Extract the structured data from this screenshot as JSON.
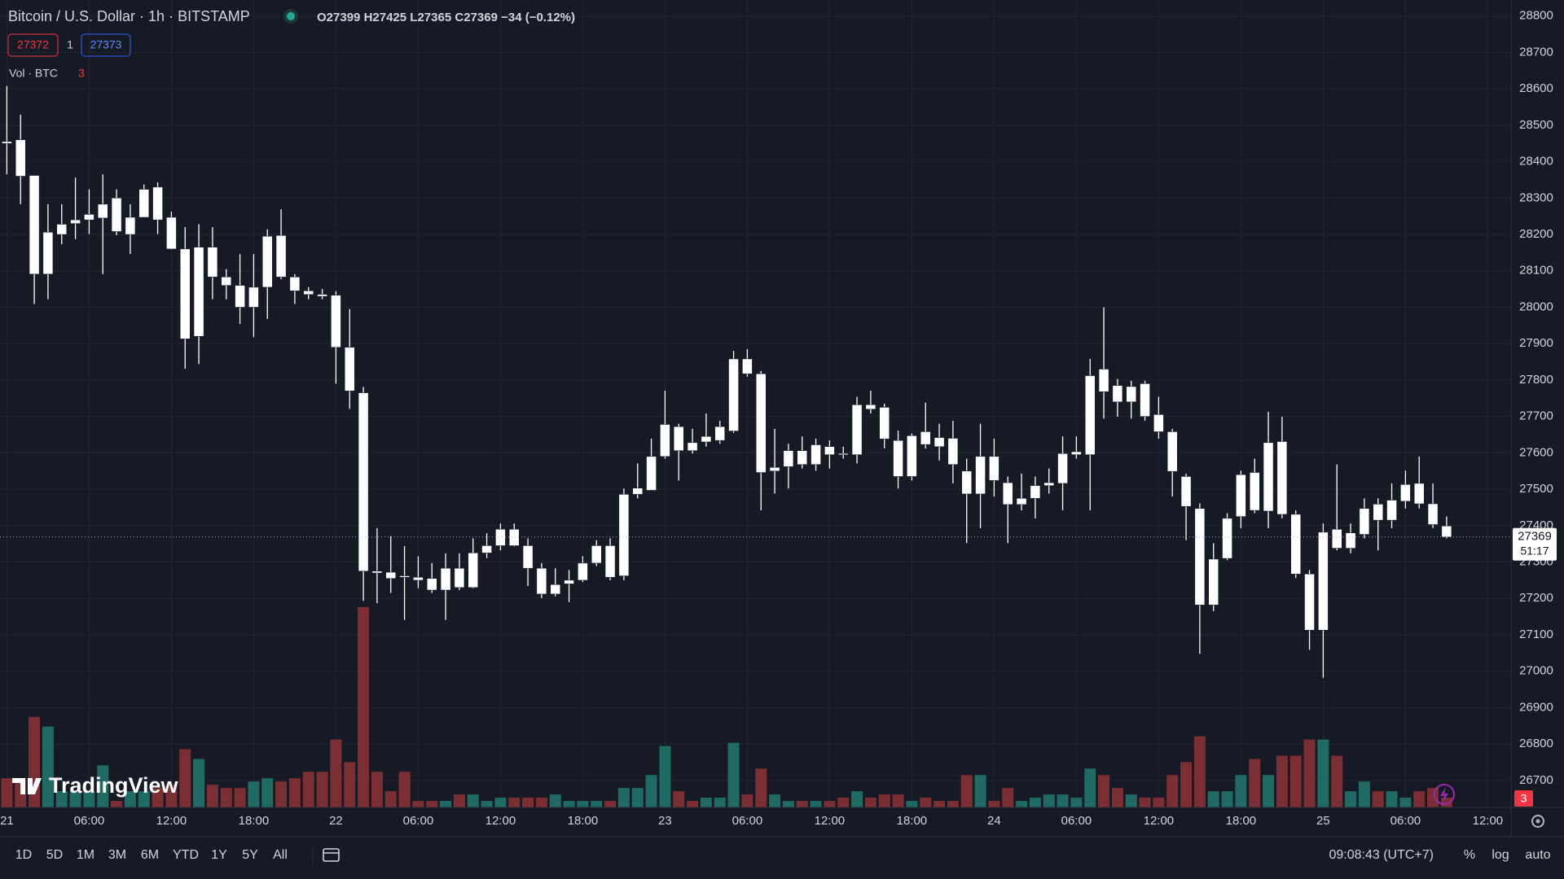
{
  "header": {
    "title": "Bitcoin / U.S. Dollar · 1h · BITSTAMP",
    "ohlc_labels": [
      "O",
      "H",
      "L",
      "C"
    ],
    "change": "−34 (−0.12%)",
    "bid": 27372,
    "spread": 1,
    "ask": 27373,
    "volume_label": "Vol · BTC",
    "countdown": "51:17",
    "logo": "TradingView"
  },
  "chart_data": {
    "type": "candlestick",
    "open": [
      28455,
      28460,
      28362,
      28091,
      28200,
      28230,
      28240,
      28245,
      28300,
      28200,
      28247,
      28330,
      28247,
      28160,
      27920,
      28165,
      28083,
      28060,
      28000,
      28055,
      28197,
      28083,
      28045,
      28035,
      28033,
      27890,
      27765,
      27275,
      27272,
      27262,
      27258,
      27255,
      27223,
      27283,
      27230,
      27325,
      27345,
      27390,
      27345,
      27283,
      27212,
      27240,
      27250,
      27297,
      27345,
      27262,
      27486,
      27497,
      27590,
      27672,
      27628,
      27630,
      27634,
      27660,
      27858,
      27817,
      27550,
      27562,
      27606,
      27568,
      27617,
      27598,
      27595,
      27732,
      27725,
      27634,
      27535,
      27658,
      27642,
      27640,
      27550,
      27487,
      27590,
      27518,
      27458,
      27475,
      27510,
      27516,
      27595,
      27595,
      27830,
      27785,
      27740,
      27790,
      27705,
      27658,
      27535,
      27447,
      27182,
      27310,
      27425,
      27546,
      27440,
      27631,
      27431,
      27267,
      27113,
      27390,
      27338,
      27376,
      27459,
      27415,
      27467,
      27516,
      27460,
      27399
    ],
    "high": [
      28608,
      28529,
      28362,
      28283,
      28283,
      28356,
      28324,
      28365,
      28324,
      28283,
      28337,
      28343,
      28263,
      28220,
      28228,
      28220,
      28105,
      28146,
      28146,
      28214,
      28269,
      28091,
      28055,
      28050,
      28044,
      27995,
      27781,
      27393,
      27371,
      27344,
      27316,
      27297,
      27324,
      27324,
      27365,
      27379,
      27406,
      27406,
      27365,
      27297,
      27283,
      27278,
      27316,
      27360,
      27365,
      27502,
      27571,
      27639,
      27771,
      27680,
      27666,
      27708,
      27688,
      27880,
      27885,
      27825,
      27666,
      27625,
      27645,
      27639,
      27634,
      27617,
      27754,
      27771,
      27735,
      27661,
      27653,
      27738,
      27680,
      27688,
      27584,
      27680,
      27639,
      27535,
      27543,
      27535,
      27557,
      27645,
      27645,
      27858,
      28000,
      27803,
      27798,
      27798,
      27754,
      27666,
      27543,
      27461,
      27352,
      27434,
      27551,
      27584,
      27713,
      27699,
      27442,
      27278,
      27406,
      27568,
      27406,
      27475,
      27475,
      27516,
      27551,
      27590,
      27516,
      27425
    ],
    "low": [
      28365,
      28283,
      28009,
      28022,
      28173,
      28187,
      28201,
      28091,
      28198,
      28146,
      28247,
      28201,
      28159,
      27831,
      27844,
      28022,
      28022,
      27954,
      27918,
      27968,
      28077,
      28009,
      28022,
      28022,
      27790,
      27721,
      27193,
      27187,
      27215,
      27141,
      27228,
      27215,
      27141,
      27223,
      27228,
      27311,
      27332,
      27343,
      27234,
      27201,
      27206,
      27190,
      27245,
      27289,
      27250,
      27250,
      27475,
      27497,
      27584,
      27524,
      27598,
      27617,
      27625,
      27655,
      27809,
      27442,
      27488,
      27502,
      27557,
      27551,
      27557,
      27584,
      27571,
      27708,
      27612,
      27502,
      27524,
      27612,
      27579,
      27516,
      27352,
      27393,
      27480,
      27352,
      27442,
      27420,
      27488,
      27442,
      27584,
      27442,
      27694,
      27699,
      27694,
      27688,
      27639,
      27480,
      27360,
      27048,
      27165,
      27305,
      27393,
      27434,
      27393,
      27420,
      27256,
      27059,
      26982,
      27332,
      27324,
      27365,
      27332,
      27393,
      27447,
      27447,
      27393,
      27365
    ],
    "close": [
      28450,
      28360,
      28091,
      28206,
      28228,
      28240,
      28255,
      28283,
      28208,
      28247,
      28324,
      28240,
      28160,
      27913,
      28165,
      28083,
      28060,
      28000,
      28055,
      28195,
      28083,
      28045,
      28035,
      28030,
      27890,
      27770,
      27275,
      27270,
      27255,
      27258,
      27250,
      27223,
      27283,
      27230,
      27325,
      27345,
      27390,
      27345,
      27283,
      27212,
      27238,
      27250,
      27297,
      27345,
      27258,
      27486,
      27503,
      27590,
      27678,
      27606,
      27606,
      27645,
      27672,
      27858,
      27817,
      27546,
      27560,
      27606,
      27568,
      27622,
      27595,
      27595,
      27732,
      27720,
      27638,
      27535,
      27647,
      27623,
      27617,
      27568,
      27487,
      27590,
      27524,
      27458,
      27475,
      27510,
      27518,
      27598,
      27603,
      27812,
      27768,
      27740,
      27782,
      27700,
      27658,
      27549,
      27453,
      27182,
      27308,
      27420,
      27540,
      27442,
      27628,
      27431,
      27267,
      27113,
      27382,
      27338,
      27380,
      27447,
      27415,
      27470,
      27513,
      27460,
      27403,
      27369
    ],
    "volume": [
      9,
      9,
      28,
      25,
      5,
      5,
      5,
      13,
      2,
      5,
      5,
      6,
      7,
      18,
      15,
      7,
      6,
      6,
      8,
      9,
      8,
      9,
      11,
      11,
      21,
      14,
      62,
      11,
      5,
      11,
      2,
      2,
      2,
      4,
      4,
      2,
      3,
      3,
      3,
      3,
      4,
      2,
      2,
      2,
      2,
      6,
      6,
      10,
      19,
      5,
      2,
      3,
      3,
      20,
      4,
      12,
      4,
      2,
      2,
      2,
      2,
      3,
      5,
      3,
      4,
      4,
      2,
      3,
      2,
      2,
      10,
      10,
      2,
      6,
      2,
      3,
      4,
      4,
      3,
      12,
      10,
      6,
      4,
      3,
      3,
      10,
      14,
      22,
      5,
      5,
      10,
      15,
      10,
      16,
      16,
      21,
      21,
      16,
      5,
      8,
      5,
      5,
      3,
      5,
      6,
      3
    ],
    "xlim": [
      -0.5,
      109.7
    ],
    "xticks": [
      {
        "value": 0,
        "label": "21"
      },
      {
        "value": 6,
        "label": "06:00"
      },
      {
        "value": 12,
        "label": "12:00"
      },
      {
        "value": 18,
        "label": "18:00"
      },
      {
        "value": 24,
        "label": "22"
      },
      {
        "value": 30,
        "label": "06:00"
      },
      {
        "value": 36,
        "label": "12:00"
      },
      {
        "value": 42,
        "label": "18:00"
      },
      {
        "value": 48,
        "label": "23"
      },
      {
        "value": 54,
        "label": "06:00"
      },
      {
        "value": 60,
        "label": "12:00"
      },
      {
        "value": 66,
        "label": "18:00"
      },
      {
        "value": 72,
        "label": "24"
      },
      {
        "value": 78,
        "label": "06:00"
      },
      {
        "value": 84,
        "label": "12:00"
      },
      {
        "value": 90,
        "label": "18:00"
      },
      {
        "value": 96,
        "label": "25"
      },
      {
        "value": 102,
        "label": "06:00"
      },
      {
        "value": 108,
        "label": "12:00"
      }
    ],
    "ylim": [
      26626,
      28844
    ],
    "yticks": [
      26700,
      26800,
      26900,
      27000,
      27100,
      27200,
      27300,
      27400,
      27500,
      27600,
      27700,
      27800,
      27900,
      28000,
      28100,
      28200,
      28300,
      28400,
      28500,
      28600,
      28700,
      28800
    ],
    "volume_lim": [
      0,
      100
    ],
    "grid": true,
    "log_scale": false,
    "candle_color": "#ffffff",
    "up_color": "#1f6a63",
    "down_color": "#7b2f33"
  },
  "toolbar": {
    "ranges": [
      "1D",
      "5D",
      "1M",
      "3M",
      "6M",
      "YTD",
      "1Y",
      "5Y",
      "All"
    ],
    "time": "09:08:43 (UTC+7)",
    "percent": "%",
    "log": "log",
    "auto": "auto"
  }
}
